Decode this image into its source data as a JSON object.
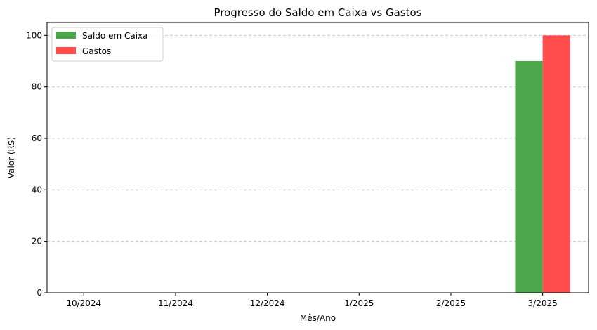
{
  "chart_data": {
    "type": "bar",
    "title": "Progresso do Saldo em Caixa vs Gastos",
    "xlabel": "Mês/Ano",
    "ylabel": "Valor (R$)",
    "categories": [
      "10/2024",
      "11/2024",
      "12/2024",
      "1/2025",
      "2/2025",
      "3/2025"
    ],
    "series": [
      {
        "name": "Saldo em Caixa",
        "values": [
          0,
          0,
          0,
          0,
          0,
          90
        ],
        "color": "#4ca64c"
      },
      {
        "name": "Gastos",
        "values": [
          0,
          0,
          0,
          0,
          0,
          100
        ],
        "color": "#ff4c4c"
      }
    ],
    "ylim": [
      0,
      105
    ],
    "yticks": [
      0,
      20,
      40,
      60,
      80,
      100
    ],
    "grid": "y-dashed",
    "legend_position": "top-left"
  }
}
